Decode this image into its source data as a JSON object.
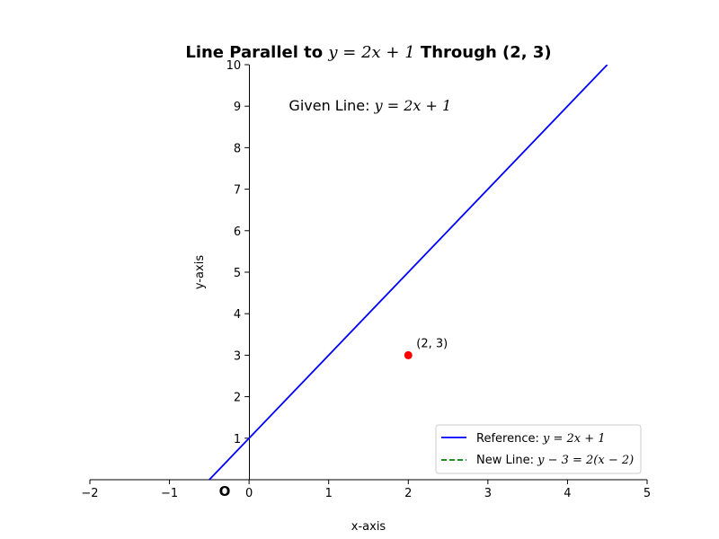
{
  "chart_data": {
    "type": "line",
    "title": {
      "prefix": "Line Parallel to ",
      "math": "y = 2x + 1",
      "suffix": " Through (2, 3)"
    },
    "xlabel": "x-axis",
    "ylabel": "y-axis",
    "xlim": [
      -2,
      5
    ],
    "ylim": [
      0,
      10
    ],
    "xticks": [
      -2,
      -1,
      0,
      1,
      2,
      3,
      4,
      5
    ],
    "xtick_labels": [
      "−2",
      "−1",
      "0",
      "1",
      "2",
      "3",
      "4",
      "5"
    ],
    "yticks": [
      1,
      2,
      3,
      4,
      5,
      6,
      7,
      8,
      9,
      10
    ],
    "ytick_labels": [
      "1",
      "2",
      "3",
      "4",
      "5",
      "6",
      "7",
      "8",
      "9",
      "10"
    ],
    "grid": false,
    "legend_position": "lower-right",
    "series": [
      {
        "name": "Reference: y = 2x + 1",
        "legend_prefix": "Reference: ",
        "legend_math": "y = 2x + 1",
        "color": "#0000ff",
        "style": "solid",
        "x": [
          -0.5,
          4.5
        ],
        "y": [
          0,
          10
        ]
      },
      {
        "name": "New Line: y − 3 = 2(x − 2)",
        "legend_prefix": "New Line: ",
        "legend_math": "y − 3 = 2(x − 2)",
        "color": "#008000",
        "style": "dashed",
        "x": [],
        "y": []
      }
    ],
    "points": [
      {
        "x": 2,
        "y": 3,
        "label": "(2, 3)",
        "color": "#ff0000"
      }
    ],
    "annotations": [
      {
        "prefix": "Given Line: ",
        "math": "y = 2x + 1",
        "x": 0.5,
        "y": 9
      }
    ],
    "origin_label": "O"
  }
}
